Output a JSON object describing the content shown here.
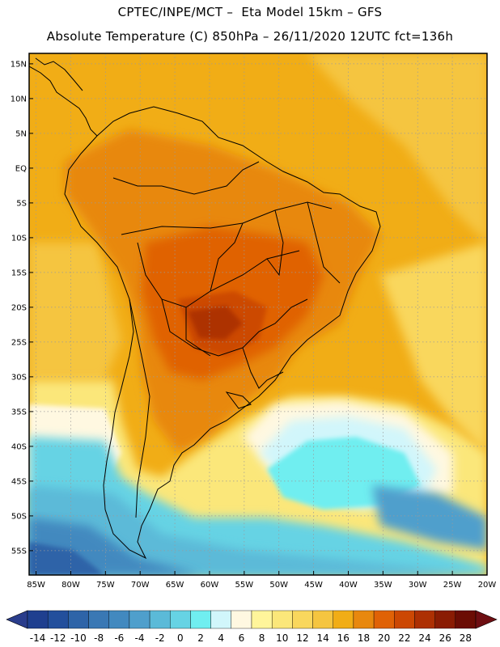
{
  "header": {
    "line1": "CPTEC/INPE/MCT –  Eta Model 15km – GFS",
    "line2": "Absolute Temperature (C) 850hPa – 26/11/2020 12UTC fct=136h"
  },
  "map": {
    "lat_labels": [
      "15N",
      "10N",
      "5N",
      "EQ",
      "5S",
      "10S",
      "15S",
      "20S",
      "25S",
      "30S",
      "35S",
      "40S",
      "45S",
      "50S",
      "55S"
    ],
    "lon_labels": [
      "85W",
      "80W",
      "75W",
      "70W",
      "65W",
      "60W",
      "55W",
      "50W",
      "45W",
      "40W",
      "35W",
      "30W",
      "25W",
      "20W"
    ],
    "lat_range": [
      16.5,
      -58.5
    ],
    "lon_range": [
      -86,
      -20
    ],
    "gridlines": "dotted"
  },
  "colorbar": {
    "labels": [
      "-14",
      "-12",
      "-10",
      "-8",
      "-6",
      "-4",
      "-2",
      "0",
      "2",
      "4",
      "6",
      "8",
      "10",
      "12",
      "14",
      "16",
      "18",
      "20",
      "22",
      "24",
      "26",
      "28"
    ],
    "colors": [
      "#1f3f8f",
      "#234f9c",
      "#2e64a8",
      "#3a78b4",
      "#4289bf",
      "#4f9fcc",
      "#5bbad8",
      "#66d3e4",
      "#70eef0",
      "#d1f6fb",
      "#fff8e1",
      "#fff59b",
      "#fbe77a",
      "#f9d75d",
      "#f5c540",
      "#f1ad16",
      "#e8880e",
      "#e06206",
      "#cc4803",
      "#ad3003",
      "#8a1c03",
      "#6b0d04"
    ],
    "under_color": "#2a3d8c",
    "over_color": "#6e0e12"
  }
}
